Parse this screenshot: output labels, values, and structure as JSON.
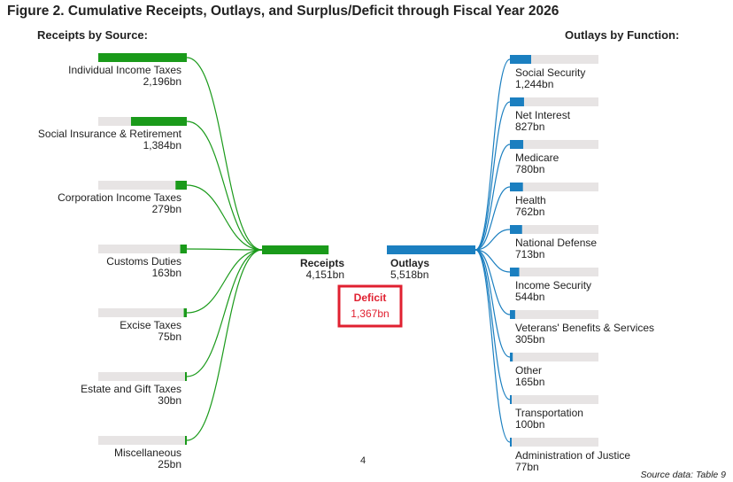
{
  "title": "Figure 2. Cumulative Receipts, Outlays, and Surplus/Deficit through Fiscal Year 2026",
  "receipts_heading": "Receipts by Source:",
  "outlays_heading": "Outlays by Function:",
  "page_number": "4",
  "source_note": "Source data: Table 9",
  "colors": {
    "receipts": "#1a9a1a",
    "outlays": "#1b7fc0",
    "track": "#e7e4e4",
    "deficit": "#e02030",
    "text": "#222222"
  },
  "chart_data": {
    "type": "bar",
    "unit": "bn",
    "receipts": {
      "total_label": "Receipts",
      "total": 4151,
      "total_text": "4,151bn",
      "items": [
        {
          "name": "Individual Income Taxes",
          "value": 2196,
          "text": "2,196bn"
        },
        {
          "name": "Social Insurance & Retirement",
          "value": 1384,
          "text": "1,384bn"
        },
        {
          "name": "Corporation Income Taxes",
          "value": 279,
          "text": "279bn"
        },
        {
          "name": "Customs Duties",
          "value": 163,
          "text": "163bn"
        },
        {
          "name": "Excise Taxes",
          "value": 75,
          "text": "75bn"
        },
        {
          "name": "Estate and Gift Taxes",
          "value": 30,
          "text": "30bn"
        },
        {
          "name": "Miscellaneous",
          "value": 25,
          "text": "25bn"
        }
      ]
    },
    "outlays": {
      "total_label": "Outlays",
      "total": 5518,
      "total_text": "5,518bn",
      "items": [
        {
          "name": "Social Security",
          "value": 1244,
          "text": "1,244bn"
        },
        {
          "name": "Net Interest",
          "value": 827,
          "text": "827bn"
        },
        {
          "name": "Medicare",
          "value": 780,
          "text": "780bn"
        },
        {
          "name": "Health",
          "value": 762,
          "text": "762bn"
        },
        {
          "name": "National Defense",
          "value": 713,
          "text": "713bn"
        },
        {
          "name": "Income Security",
          "value": 544,
          "text": "544bn"
        },
        {
          "name": "Veterans' Benefits & Services",
          "value": 305,
          "text": "305bn"
        },
        {
          "name": "Other",
          "value": 165,
          "text": "165bn"
        },
        {
          "name": "Transportation",
          "value": 100,
          "text": "100bn"
        },
        {
          "name": "Administration of Justice",
          "value": 77,
          "text": "77bn"
        }
      ]
    },
    "deficit": {
      "label": "Deficit",
      "value": 1367,
      "text": "1,367bn"
    }
  }
}
